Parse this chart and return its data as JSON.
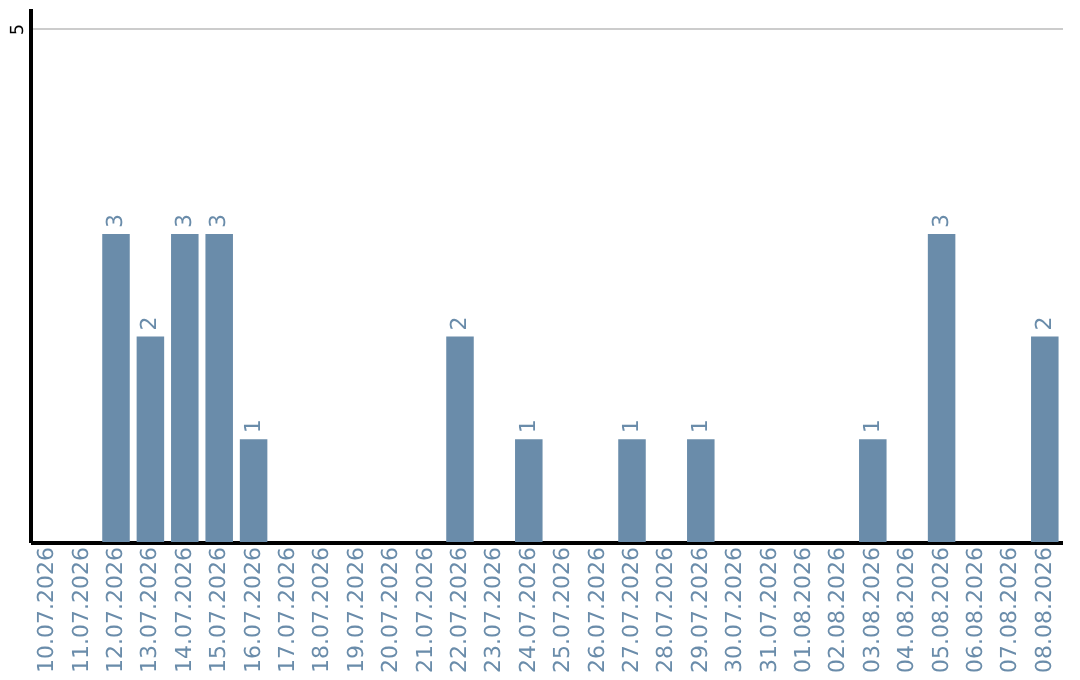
{
  "chart_data": {
    "type": "bar",
    "categories": [
      "10.07.2026",
      "11.07.2026",
      "12.07.2026",
      "13.07.2026",
      "14.07.2026",
      "15.07.2026",
      "16.07.2026",
      "17.07.2026",
      "18.07.2026",
      "19.07.2026",
      "20.07.2026",
      "21.07.2026",
      "22.07.2026",
      "23.07.2026",
      "24.07.2026",
      "25.07.2026",
      "26.07.2026",
      "27.07.2026",
      "28.07.2026",
      "29.07.2026",
      "30.07.2026",
      "31.07.2026",
      "01.08.2026",
      "02.08.2026",
      "03.08.2026",
      "04.08.2026",
      "05.08.2026",
      "06.08.2026",
      "07.08.2026",
      "08.08.2026"
    ],
    "values": [
      0,
      0,
      3,
      2,
      3,
      3,
      1,
      0,
      0,
      0,
      0,
      0,
      2,
      0,
      1,
      0,
      0,
      1,
      0,
      1,
      0,
      0,
      0,
      0,
      1,
      0,
      3,
      0,
      0,
      2
    ],
    "value_labels": [
      null,
      null,
      "3",
      "2",
      "3",
      "3",
      "1",
      null,
      null,
      null,
      null,
      null,
      "2",
      null,
      "1",
      null,
      null,
      "1",
      null,
      "1",
      null,
      null,
      null,
      null,
      "1",
      null,
      "3",
      null,
      null,
      "2"
    ],
    "color": "#6a8caa",
    "ylim": [
      0,
      5.2
    ],
    "yticks": [
      5
    ],
    "grid": "y"
  }
}
